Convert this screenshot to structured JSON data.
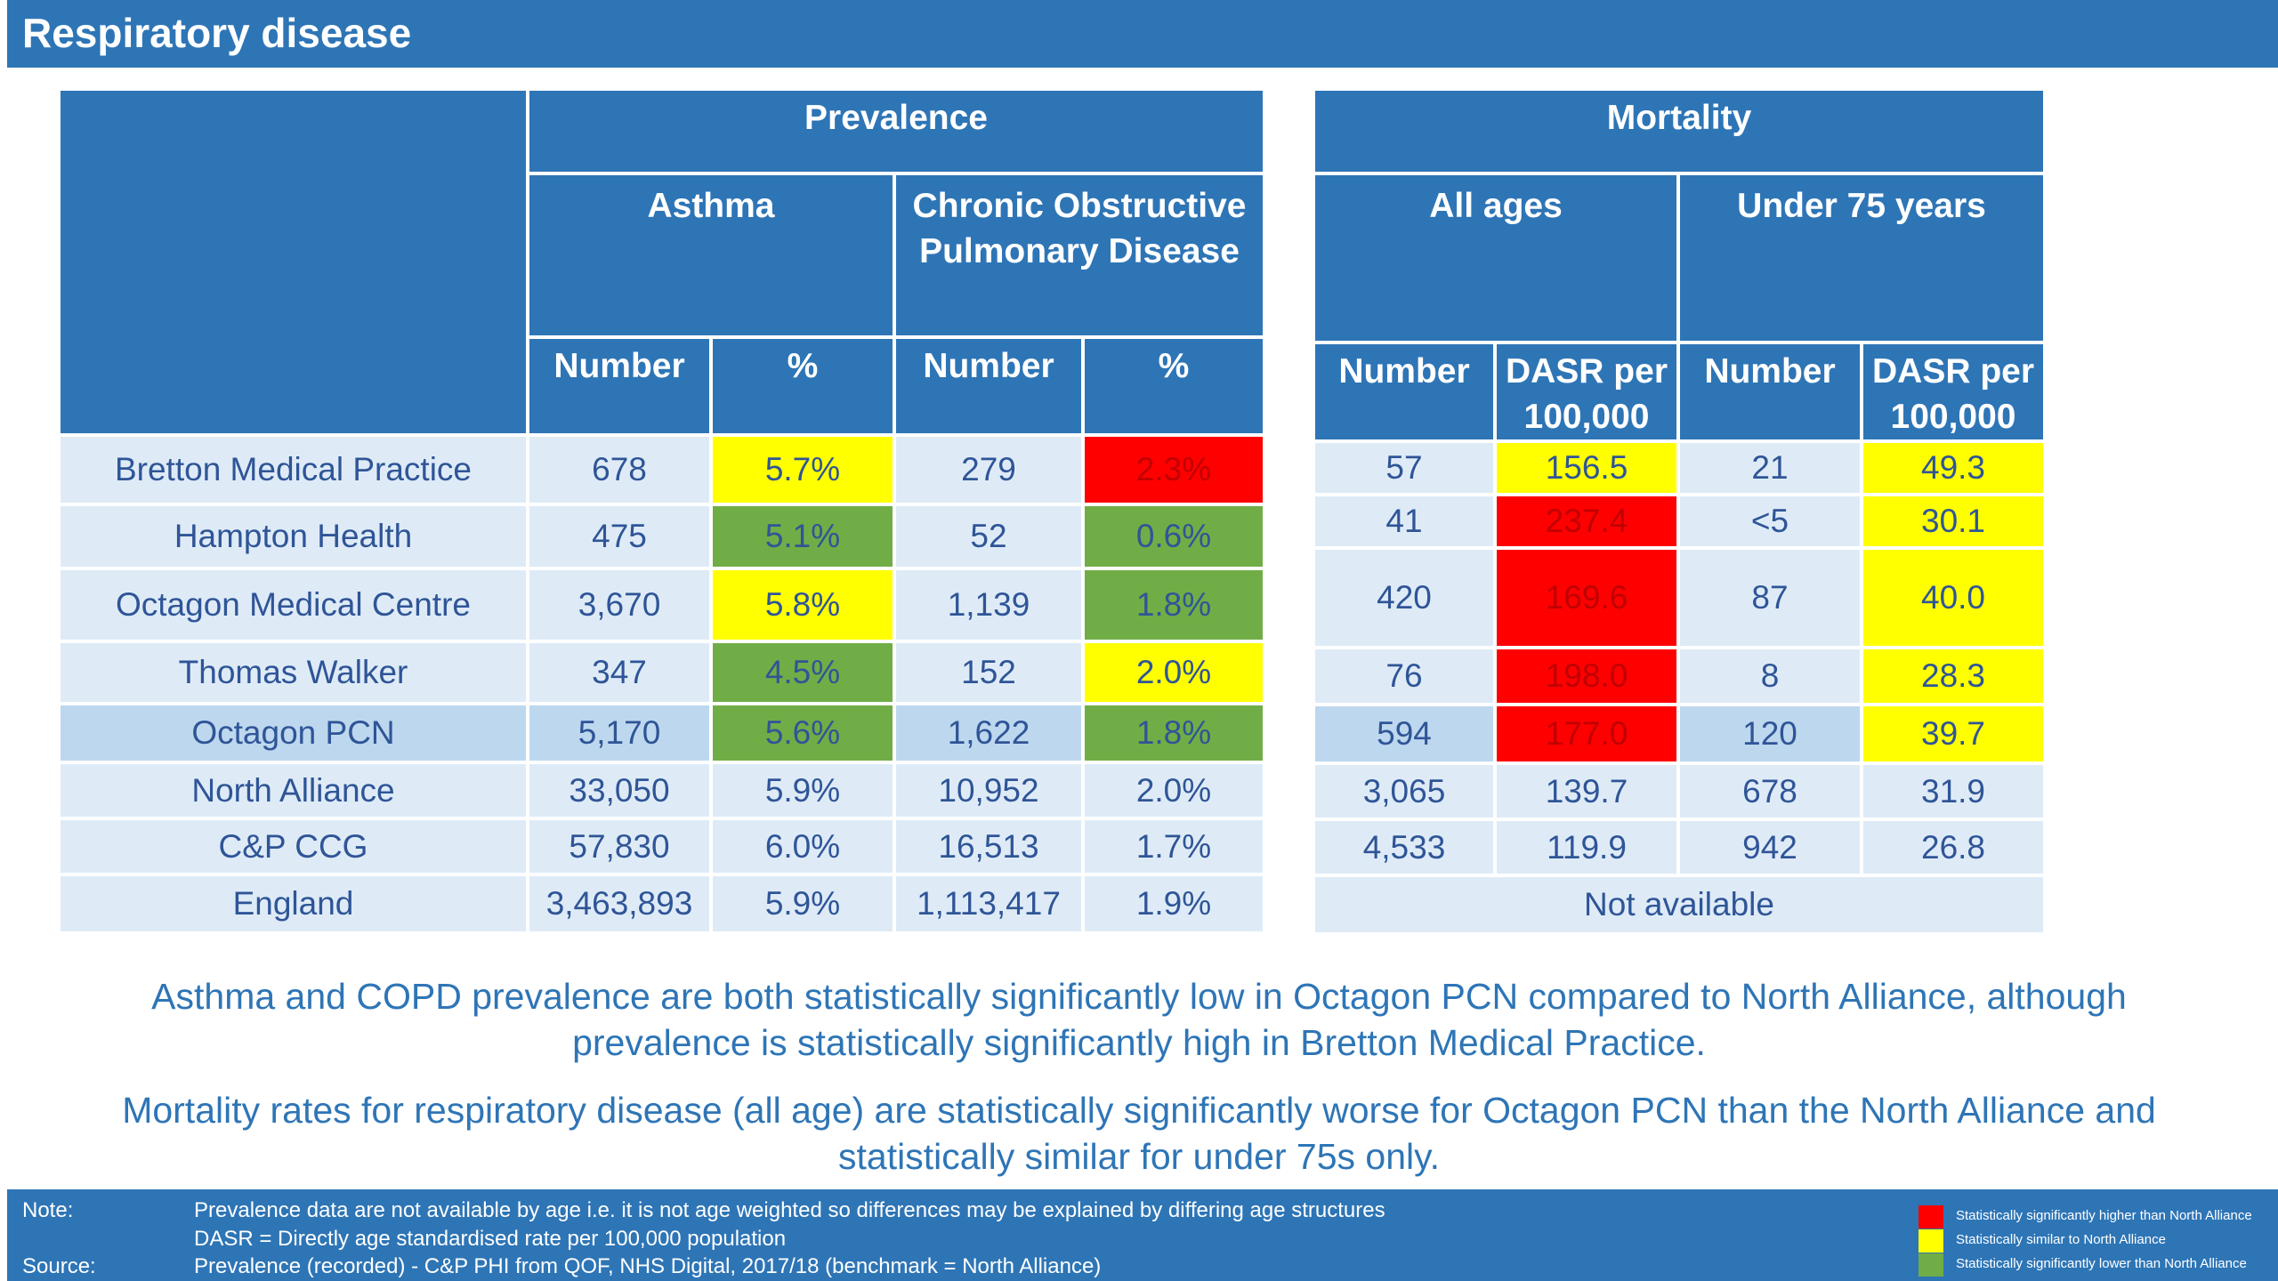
{
  "header": {
    "title": "Respiratory disease"
  },
  "prevalence": {
    "group_header": "Prevalence",
    "asthma_header": "Asthma",
    "copd_header": "Chronic Obstructive Pulmonary Disease",
    "number_header": "Number",
    "percent_header": "%",
    "rows": [
      {
        "name": "Bretton Medical Practice",
        "asthma_n": "678",
        "asthma_pct": "5.7%",
        "asthma_flag": "yellow",
        "copd_n": "279",
        "copd_pct": "2.3%",
        "copd_flag": "red"
      },
      {
        "name": "Hampton Health",
        "asthma_n": "475",
        "asthma_pct": "5.1%",
        "asthma_flag": "green",
        "copd_n": "52",
        "copd_pct": "0.6%",
        "copd_flag": "green"
      },
      {
        "name": "Octagon Medical Centre",
        "asthma_n": "3,670",
        "asthma_pct": "5.8%",
        "asthma_flag": "yellow",
        "copd_n": "1,139",
        "copd_pct": "1.8%",
        "copd_flag": "green"
      },
      {
        "name": "Thomas Walker",
        "asthma_n": "347",
        "asthma_pct": "4.5%",
        "asthma_flag": "green",
        "copd_n": "152",
        "copd_pct": "2.0%",
        "copd_flag": "yellow"
      },
      {
        "name": "Octagon PCN",
        "asthma_n": "5,170",
        "asthma_pct": "5.6%",
        "asthma_flag": "green",
        "copd_n": "1,622",
        "copd_pct": "1.8%",
        "copd_flag": "green"
      },
      {
        "name": "North Alliance",
        "asthma_n": "33,050",
        "asthma_pct": "5.9%",
        "asthma_flag": "none",
        "copd_n": "10,952",
        "copd_pct": "2.0%",
        "copd_flag": "none"
      },
      {
        "name": "C&P CCG",
        "asthma_n": "57,830",
        "asthma_pct": "6.0%",
        "asthma_flag": "none",
        "copd_n": "16,513",
        "copd_pct": "1.7%",
        "copd_flag": "none"
      },
      {
        "name": "England",
        "asthma_n": "3,463,893",
        "asthma_pct": "5.9%",
        "asthma_flag": "none",
        "copd_n": "1,113,417",
        "copd_pct": "1.9%",
        "copd_flag": "none"
      }
    ]
  },
  "mortality": {
    "group_header": "Mortality",
    "all_ages_header": "All ages",
    "under75_header": "Under 75 years",
    "number_header": "Number",
    "dasr_header_line1": "DASR per",
    "dasr_header_line2": "100,000",
    "not_available": "Not available",
    "rows": [
      {
        "all_n": "57",
        "all_dasr": "156.5",
        "all_flag": "yellow",
        "u75_n": "21",
        "u75_dasr": "49.3",
        "u75_flag": "yellow"
      },
      {
        "all_n": "41",
        "all_dasr": "237.4",
        "all_flag": "red",
        "u75_n": "<5",
        "u75_dasr": "30.1",
        "u75_flag": "yellow"
      },
      {
        "all_n": "420",
        "all_dasr": "169.6",
        "all_flag": "red",
        "u75_n": "87",
        "u75_dasr": "40.0",
        "u75_flag": "yellow"
      },
      {
        "all_n": "76",
        "all_dasr": "198.0",
        "all_flag": "red",
        "u75_n": "8",
        "u75_dasr": "28.3",
        "u75_flag": "yellow"
      },
      {
        "all_n": "594",
        "all_dasr": "177.0",
        "all_flag": "red",
        "u75_n": "120",
        "u75_dasr": "39.7",
        "u75_flag": "yellow"
      },
      {
        "all_n": "3,065",
        "all_dasr": "139.7",
        "all_flag": "none",
        "u75_n": "678",
        "u75_dasr": "31.9",
        "u75_flag": "none"
      },
      {
        "all_n": "4,533",
        "all_dasr": "119.9",
        "all_flag": "none",
        "u75_n": "942",
        "u75_dasr": "26.8",
        "u75_flag": "none"
      }
    ]
  },
  "summary": {
    "para1_line1": "Asthma and COPD prevalence are both statistically significantly low in Octagon PCN compared to North Alliance, although",
    "para1_line2": "prevalence is statistically significantly high in Bretton Medical Practice.",
    "para2_line1": "Mortality rates for respiratory disease (all age) are statistically significantly worse for Octagon PCN than the North Alliance and",
    "para2_line2": "statistically similar for under 75s only."
  },
  "footer": {
    "note_label": "Note:",
    "note_line1": "Prevalence data are not available by age i.e. it is not age weighted so differences may be explained by differing age structures",
    "note_line2": "DASR = Directly age standardised rate per 100,000 population",
    "source_label": "Source:",
    "source_line": "Prevalence (recorded) - C&P PHI from QOF, NHS Digital, 2017/18 (benchmark = North Alliance)"
  },
  "legend": [
    {
      "label": "Statistically significantly higher than North Alliance",
      "color": "#ff0000"
    },
    {
      "label": "Statistically similar to North Alliance",
      "color": "#ffff00"
    },
    {
      "label": "Statistically significantly lower than North Alliance",
      "color": "#70ad47"
    }
  ]
}
